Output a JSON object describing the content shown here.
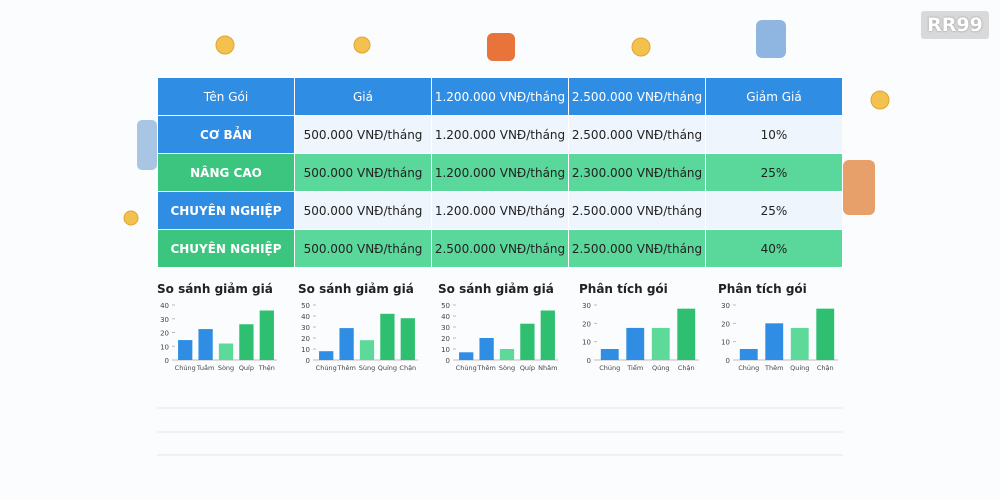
{
  "logo": "RR99",
  "table": {
    "header": [
      "Tên Gói",
      "Giá",
      "1.200.000 VNĐ/tháng",
      "2.500.000 VNĐ/tháng",
      "Giảm Giá"
    ],
    "rows": [
      [
        "CƠ BẢN",
        "500.000 VNĐ/tháng",
        "1.200.000 VNĐ/tháng",
        "2.500.000 VNĐ/tháng",
        "10%"
      ],
      [
        "NÂNG CAO",
        "500.000 VNĐ/tháng",
        "1.200.000 VNĐ/tháng",
        "2.300.000 VNĐ/tháng",
        "25%"
      ],
      [
        "CHUYÊN NGHIỆP",
        "500.000 VNĐ/tháng",
        "1.200.000 VNĐ/tháng",
        "2.500.000 VNĐ/tháng",
        "25%"
      ],
      [
        "CHUYÊN NGHIỆP",
        "500.000 VNĐ/tháng",
        "2.500.000 VNĐ/tháng",
        "2.500.000 VNĐ/tháng",
        "40%"
      ]
    ]
  },
  "charts": [
    {
      "type": "bar",
      "title": "So sánh giảm giá",
      "categories": [
        "Chủng",
        "Tuầm",
        "Sòng",
        "Quíp",
        "Thện"
      ],
      "values": [
        14.5,
        22.5,
        12,
        26,
        36
      ],
      "colors": [
        "#2f8de4",
        "#2f8de4",
        "#5dd99a",
        "#2fbf71",
        "#2fbf71"
      ],
      "ylim": [
        0,
        40
      ],
      "yticks": [
        0,
        10,
        20,
        30,
        40
      ]
    },
    {
      "type": "bar",
      "title": "So sánh giảm giá",
      "categories": [
        "Chủng",
        "Thêm",
        "Sùng",
        "Quíng",
        "Chận"
      ],
      "values": [
        8,
        29,
        18,
        42,
        38
      ],
      "colors": [
        "#2f8de4",
        "#2f8de4",
        "#5dd99a",
        "#2fbf71",
        "#2fbf71"
      ],
      "ylim": [
        0,
        50
      ],
      "yticks": [
        0,
        10,
        20,
        30,
        40,
        50
      ]
    },
    {
      "type": "bar",
      "title": "So sánh giảm giá",
      "categories": [
        "Chủng",
        "Thêm",
        "Sòng",
        "Quíp",
        "Nhâm"
      ],
      "values": [
        7,
        20,
        10,
        33,
        45
      ],
      "colors": [
        "#2f8de4",
        "#2f8de4",
        "#5dd99a",
        "#2fbf71",
        "#2fbf71"
      ],
      "ylim": [
        0,
        50
      ],
      "yticks": [
        0,
        10,
        20,
        30,
        40,
        50
      ]
    },
    {
      "type": "bar",
      "title": "Phân tích gói",
      "categories": [
        "Chủng",
        "Tiểm",
        "Qúng",
        "Chận"
      ],
      "values": [
        6,
        17.5,
        17.5,
        28
      ],
      "colors": [
        "#2f8de4",
        "#2f8de4",
        "#5dd99a",
        "#2fbf71"
      ],
      "ylim": [
        0,
        30
      ],
      "yticks": [
        0,
        10,
        20,
        30
      ]
    },
    {
      "type": "bar",
      "title": "Phân tích gói",
      "categories": [
        "Chủng",
        "Thêm",
        "Quíng",
        "Chận"
      ],
      "values": [
        6,
        20,
        17.5,
        28
      ],
      "colors": [
        "#2f8de4",
        "#2f8de4",
        "#5dd99a",
        "#2fbf71"
      ],
      "ylim": [
        0,
        30
      ],
      "yticks": [
        0,
        10,
        20,
        30
      ]
    }
  ]
}
